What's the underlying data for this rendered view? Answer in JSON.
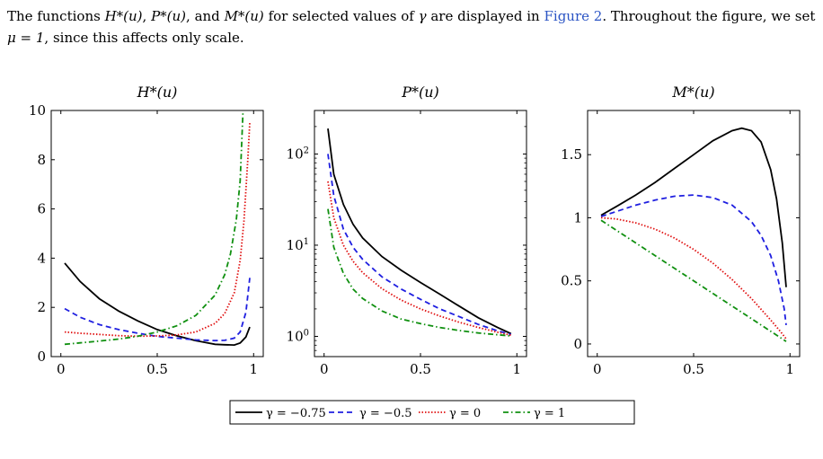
{
  "paragraph": {
    "part1": "The functions ",
    "h": "H*(u)",
    "sep1": ", ",
    "p": "P*(u)",
    "sep2": ", and ",
    "m": "M*(u)",
    "part2": " for selected values of ",
    "gamma": "γ",
    "part3": " are displayed in ",
    "figure_ref": "Figure 2",
    "part4": ". Throughout the figure, we set ",
    "mu_eq": "μ = 1",
    "part5": ", since this affects only scale."
  },
  "caption": "",
  "colors": {
    "gamma_neg075": "#000000",
    "gamma_neg05": "#1f1fe0",
    "gamma_0": "#e01010",
    "gamma_1": "#109010",
    "link": "#2b54c4"
  },
  "legend": [
    "γ = −0.75",
    "γ = −0.5",
    "γ = 0",
    "γ = 1"
  ],
  "chart_data": [
    {
      "type": "line",
      "title": "H*(u)",
      "xlabel": "",
      "ylabel": "",
      "xlim": [
        -0.05,
        1.05
      ],
      "ylim": [
        0,
        10
      ],
      "xticks": [
        0,
        0.5,
        1
      ],
      "xtick_labels": [
        "0",
        "0.5",
        "1"
      ],
      "yticks": [
        0,
        2,
        4,
        6,
        8,
        10
      ],
      "ytick_labels": [
        "0",
        "2",
        "4",
        "6",
        "8",
        "10"
      ],
      "grid": false,
      "series": [
        {
          "name": "γ = −0.75",
          "style": "solid",
          "x": [
            0.02,
            0.1,
            0.2,
            0.3,
            0.4,
            0.5,
            0.6,
            0.7,
            0.8,
            0.85,
            0.9,
            0.93,
            0.96,
            0.98
          ],
          "y": [
            3.8,
            3.05,
            2.35,
            1.85,
            1.45,
            1.1,
            0.85,
            0.65,
            0.5,
            0.48,
            0.47,
            0.55,
            0.8,
            1.2
          ]
        },
        {
          "name": "γ = −0.5",
          "style": "dashed",
          "x": [
            0.02,
            0.1,
            0.2,
            0.3,
            0.4,
            0.5,
            0.6,
            0.7,
            0.8,
            0.85,
            0.9,
            0.93,
            0.96,
            0.98
          ],
          "y": [
            1.95,
            1.6,
            1.3,
            1.1,
            0.95,
            0.82,
            0.75,
            0.68,
            0.65,
            0.66,
            0.75,
            1.0,
            1.8,
            3.2
          ]
        },
        {
          "name": "γ = 0",
          "style": "dotted",
          "x": [
            0.02,
            0.1,
            0.2,
            0.3,
            0.4,
            0.5,
            0.6,
            0.7,
            0.8,
            0.85,
            0.9,
            0.93,
            0.95,
            0.97,
            0.98
          ],
          "y": [
            1.0,
            0.95,
            0.9,
            0.85,
            0.83,
            0.84,
            0.88,
            1.0,
            1.35,
            1.75,
            2.6,
            3.9,
            5.5,
            8.0,
            9.5
          ]
        },
        {
          "name": "γ = 1",
          "style": "dashdot",
          "x": [
            0.02,
            0.1,
            0.2,
            0.3,
            0.4,
            0.5,
            0.6,
            0.7,
            0.8,
            0.85,
            0.88,
            0.91,
            0.93,
            0.945
          ],
          "y": [
            0.5,
            0.56,
            0.63,
            0.71,
            0.83,
            1.0,
            1.25,
            1.67,
            2.5,
            3.33,
            4.17,
            5.56,
            7.14,
            10.0
          ]
        }
      ]
    },
    {
      "type": "line",
      "title": "P*(u)",
      "xlabel": "",
      "ylabel": "",
      "yscale": "log",
      "xlim": [
        -0.05,
        1.05
      ],
      "ylim": [
        0.6,
        300
      ],
      "xticks": [
        0,
        0.5,
        1
      ],
      "xtick_labels": [
        "0",
        "0.5",
        "1"
      ],
      "yticks": [
        1,
        10,
        100
      ],
      "ytick_labels": [
        "10^0",
        "10^1",
        "10^2"
      ],
      "grid": false,
      "series": [
        {
          "name": "γ = −0.75",
          "style": "solid",
          "x": [
            0.02,
            0.05,
            0.1,
            0.15,
            0.2,
            0.3,
            0.4,
            0.5,
            0.6,
            0.7,
            0.8,
            0.9,
            0.97
          ],
          "y": [
            190,
            60,
            28,
            17,
            12,
            7.5,
            5.3,
            3.9,
            2.9,
            2.15,
            1.6,
            1.25,
            1.07
          ]
        },
        {
          "name": "γ = −0.5",
          "style": "dashed",
          "x": [
            0.02,
            0.05,
            0.1,
            0.15,
            0.2,
            0.3,
            0.4,
            0.5,
            0.6,
            0.7,
            0.8,
            0.9,
            0.97
          ],
          "y": [
            100,
            35,
            15,
            9.5,
            7.0,
            4.5,
            3.3,
            2.55,
            2.0,
            1.65,
            1.35,
            1.15,
            1.05
          ]
        },
        {
          "name": "γ = 0",
          "style": "dotted",
          "x": [
            0.02,
            0.05,
            0.1,
            0.15,
            0.2,
            0.3,
            0.4,
            0.5,
            0.6,
            0.7,
            0.8,
            0.9,
            0.97
          ],
          "y": [
            50,
            20,
            10,
            6.67,
            5.0,
            3.33,
            2.5,
            2.0,
            1.67,
            1.43,
            1.25,
            1.11,
            1.03
          ]
        },
        {
          "name": "γ = 1",
          "style": "dashdot",
          "x": [
            0.02,
            0.05,
            0.1,
            0.15,
            0.2,
            0.3,
            0.4,
            0.5,
            0.6,
            0.7,
            0.8,
            0.9,
            0.97
          ],
          "y": [
            25,
            9.5,
            4.9,
            3.3,
            2.6,
            1.9,
            1.55,
            1.38,
            1.25,
            1.16,
            1.09,
            1.04,
            1.01
          ]
        }
      ]
    },
    {
      "type": "line",
      "title": "M*(u)",
      "xlabel": "",
      "ylabel": "",
      "xlim": [
        -0.05,
        1.05
      ],
      "ylim": [
        -0.1,
        1.85
      ],
      "xticks": [
        0,
        0.5,
        1
      ],
      "xtick_labels": [
        "0",
        "0.5",
        "1"
      ],
      "yticks": [
        0,
        0.5,
        1,
        1.5
      ],
      "ytick_labels": [
        "0",
        "0.5",
        "1",
        "1.5"
      ],
      "grid": false,
      "series": [
        {
          "name": "γ = −0.75",
          "style": "solid",
          "x": [
            0.02,
            0.1,
            0.2,
            0.3,
            0.4,
            0.5,
            0.6,
            0.7,
            0.75,
            0.8,
            0.85,
            0.9,
            0.93,
            0.96,
            0.98
          ],
          "y": [
            1.02,
            1.09,
            1.18,
            1.28,
            1.39,
            1.5,
            1.61,
            1.69,
            1.71,
            1.69,
            1.6,
            1.38,
            1.15,
            0.8,
            0.45
          ]
        },
        {
          "name": "γ = −0.5",
          "style": "dashed",
          "x": [
            0.02,
            0.1,
            0.2,
            0.3,
            0.4,
            0.5,
            0.6,
            0.7,
            0.8,
            0.85,
            0.9,
            0.94,
            0.97,
            0.98
          ],
          "y": [
            1.01,
            1.05,
            1.1,
            1.14,
            1.17,
            1.18,
            1.16,
            1.1,
            0.97,
            0.86,
            0.7,
            0.5,
            0.28,
            0.15
          ]
        },
        {
          "name": "γ = 0",
          "style": "dotted",
          "x": [
            0.02,
            0.1,
            0.2,
            0.3,
            0.4,
            0.5,
            0.6,
            0.7,
            0.8,
            0.9,
            0.95,
            0.98
          ],
          "y": [
            1.0,
            0.99,
            0.96,
            0.91,
            0.84,
            0.75,
            0.64,
            0.51,
            0.36,
            0.19,
            0.1,
            0.04
          ]
        },
        {
          "name": "γ = 1",
          "style": "dashdot",
          "x": [
            0.02,
            0.98
          ],
          "y": [
            0.98,
            0.02
          ]
        }
      ]
    }
  ]
}
